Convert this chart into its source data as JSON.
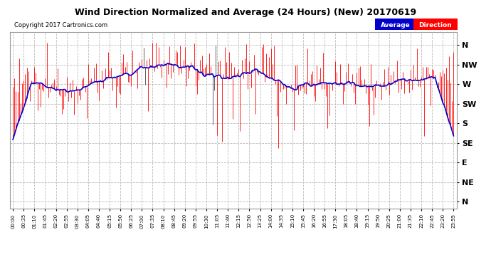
{
  "title": "Wind Direction Normalized and Average (24 Hours) (New) 20170619",
  "copyright": "Copyright 2017 Cartronics.com",
  "bg_color": "#ffffff",
  "plot_bg_color": "#ffffff",
  "grid_color": "#bbbbbb",
  "bar_color": "#ff0000",
  "avg_color": "#0000cc",
  "dark_bar_color": "#444444",
  "ytick_labels": [
    "N",
    "NW",
    "W",
    "SW",
    "S",
    "SE",
    "E",
    "NE",
    "N"
  ],
  "ytick_values": [
    360,
    315,
    270,
    225,
    180,
    135,
    90,
    45,
    0
  ],
  "ylim": [
    -15,
    390
  ],
  "legend_avg_bg": "#0000cc",
  "legend_dir_bg": "#ff0000"
}
